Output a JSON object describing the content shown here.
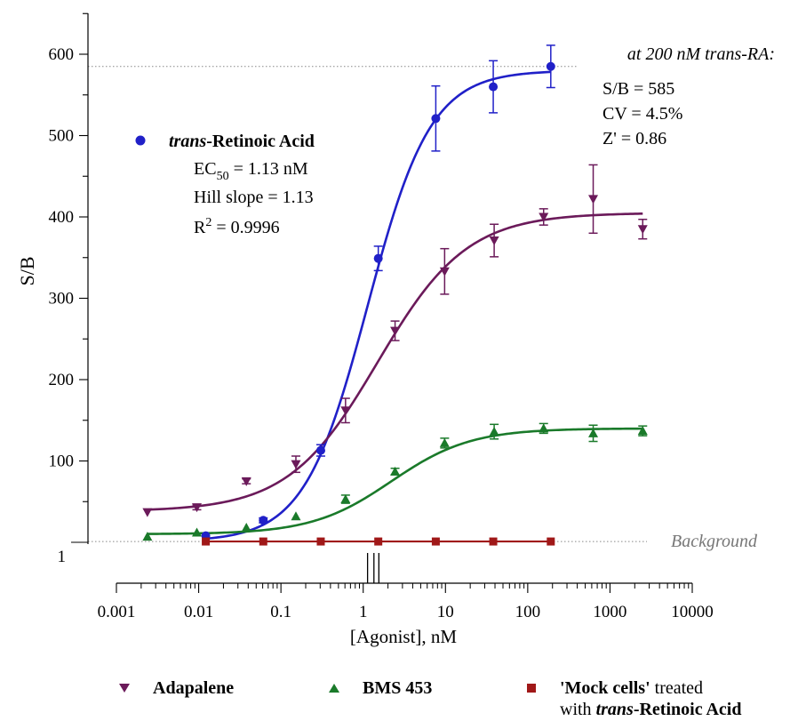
{
  "chart_data": {
    "type": "scatter",
    "xscale": "log",
    "xlabel": "[Agonist], nM",
    "ylabel": "S/B",
    "xlim": [
      0.001,
      10000
    ],
    "ylim": [
      1,
      650
    ],
    "x_ticks": [
      "0.001",
      "0.01",
      "0.1",
      "1",
      "10",
      "100",
      "1000",
      "10000"
    ],
    "y_ticks": [
      "100",
      "200",
      "300",
      "400",
      "500",
      "600"
    ],
    "y_baseline_label": "1",
    "series": [
      {
        "name": "trans-Retinoic Acid",
        "color": "#2020c8",
        "marker": "circle",
        "x": [
          0.0122,
          0.061,
          0.305,
          1.525,
          7.63,
          38.1,
          190.7
        ],
        "y": [
          8,
          27,
          113,
          349,
          521,
          560,
          585
        ],
        "err": [
          0,
          3,
          7,
          15,
          40,
          32,
          26
        ],
        "fit": {
          "bottom": 1,
          "top": 580,
          "ec50": 1.13,
          "hill": 1.13
        }
      },
      {
        "name": "Adapalene",
        "color": "#6b1a5a",
        "marker": "triangle-down",
        "x": [
          0.00238,
          0.0095,
          0.038,
          0.152,
          0.61,
          2.44,
          9.77,
          39.1,
          156,
          625,
          2500
        ],
        "y": [
          37,
          43,
          75,
          96,
          162,
          260,
          333,
          371,
          400,
          422,
          385
        ],
        "err": [
          0,
          3,
          3,
          10,
          15,
          12,
          28,
          20,
          10,
          42,
          12
        ],
        "fit": {
          "bottom": 38,
          "top": 405,
          "ec50": 1.5,
          "hill": 0.8
        }
      },
      {
        "name": "BMS 453",
        "color": "#1a7a2a",
        "marker": "triangle-up",
        "x": [
          0.00238,
          0.0095,
          0.038,
          0.152,
          0.61,
          2.44,
          9.77,
          39.1,
          156,
          625,
          2500
        ],
        "y": [
          7,
          12,
          18,
          32,
          53,
          87,
          122,
          136,
          140,
          134,
          137
        ],
        "err": [
          0,
          0,
          0,
          0,
          5,
          4,
          6,
          9,
          6,
          10,
          6
        ],
        "fit": {
          "bottom": 10,
          "top": 140,
          "ec50": 2.2,
          "hill": 0.9
        }
      },
      {
        "name": "'Mock cells' treated with trans-Retinoic Acid",
        "color": "#a01818",
        "marker": "square",
        "x": [
          0.0122,
          0.061,
          0.305,
          1.525,
          7.63,
          38.1,
          190.7
        ],
        "y": [
          1,
          1,
          1,
          1,
          1,
          1,
          1
        ],
        "err": [
          0,
          0,
          0,
          0,
          0,
          0,
          0
        ],
        "fit": null
      }
    ],
    "reference_lines": [
      {
        "y": 585,
        "label": "at 200 nM trans-RA:"
      },
      {
        "y": 1,
        "label": "Background"
      }
    ],
    "ec50_marks": [
      1.13,
      1.35,
      1.55
    ],
    "annotations": {
      "ra_title_italic": "trans",
      "ra_title_rest": "-Retinoic Acid",
      "ec50_label": "EC",
      "ec50_sub": "50",
      "ec50_value": " = 1.13 nM",
      "hill": "Hill slope = 1.13",
      "r2_label": "R",
      "r2_sup": "2",
      "r2_value": " = 0.9996",
      "sb": "S/B = 585",
      "cv": "CV = 4.5%",
      "z": "Z' = 0.86"
    },
    "legend": [
      {
        "label_bold": "Adapalene",
        "label_rest": "",
        "color": "#6b1a5a",
        "marker": "triangle-down"
      },
      {
        "label_bold": "BMS 453",
        "label_rest": "",
        "color": "#1a7a2a",
        "marker": "triangle-up"
      },
      {
        "label_bold": "'Mock cells'",
        "label_rest": " treated",
        "line2_plain": "with ",
        "line2_bold_italic": "trans",
        "line2_bold": "-Retinoic Acid",
        "color": "#a01818",
        "marker": "square"
      }
    ]
  }
}
